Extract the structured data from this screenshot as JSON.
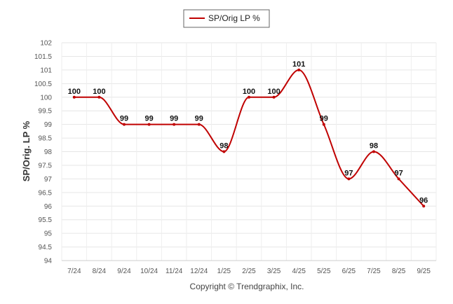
{
  "chart_data": {
    "type": "line",
    "title": "",
    "xlabel": "",
    "ylabel": "SP/Orig. LP %",
    "categories": [
      "7/24",
      "8/24",
      "9/24",
      "10/24",
      "11/24",
      "12/24",
      "1/25",
      "2/25",
      "3/25",
      "4/25",
      "5/25",
      "6/25",
      "7/25",
      "8/25",
      "9/25"
    ],
    "series": [
      {
        "name": "SP/Orig LP %",
        "values": [
          100,
          100,
          99,
          99,
          99,
          99,
          98,
          100,
          100,
          101,
          99,
          97,
          98,
          97,
          96
        ],
        "labels": [
          "100",
          "100",
          "99",
          "99",
          "99",
          "99",
          "98",
          "100",
          "100",
          "101",
          "99",
          "97",
          "98",
          "97",
          "96"
        ],
        "color": "#c00000"
      }
    ],
    "ylim": [
      94,
      102
    ],
    "yticks": [
      "94",
      "94.5",
      "95",
      "95.5",
      "96",
      "96.5",
      "97",
      "97.5",
      "98",
      "98.5",
      "99",
      "99.5",
      "100",
      "100.5",
      "101",
      "101.5",
      "102"
    ],
    "grid": true,
    "legend": "top-center"
  },
  "footer": {
    "copyright": "Copyright © Trendgraphix, Inc."
  }
}
